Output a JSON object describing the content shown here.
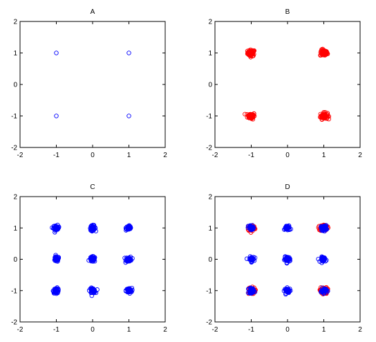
{
  "colors": {
    "blue": "#0000ff",
    "red": "#ff0000",
    "axis": "#000000"
  },
  "chart_data": [
    {
      "type": "scatter",
      "title": "A",
      "xlim": [
        -2,
        2
      ],
      "ylim": [
        -2,
        2
      ],
      "xticks": [
        -2,
        -1,
        0,
        1,
        2
      ],
      "yticks": [
        -2,
        -1,
        0,
        1,
        2
      ],
      "grid": false,
      "series": [
        {
          "color": "blue",
          "marker": "open-circle",
          "centers": [
            [
              -1,
              1
            ],
            [
              1,
              1
            ],
            [
              -1,
              -1
            ],
            [
              1,
              -1
            ]
          ],
          "spread": 0,
          "points_per_center": 1
        }
      ]
    },
    {
      "type": "scatter",
      "title": "B",
      "xlim": [
        -2,
        2
      ],
      "ylim": [
        -2,
        2
      ],
      "xticks": [
        -2,
        -1,
        0,
        1,
        2
      ],
      "yticks": [
        -2,
        -1,
        0,
        1,
        2
      ],
      "grid": false,
      "series": [
        {
          "color": "red",
          "marker": "open-circle",
          "centers": [
            [
              -1,
              1
            ],
            [
              1,
              1
            ],
            [
              -1,
              -1
            ],
            [
              1,
              -1
            ]
          ],
          "spread": 0.05,
          "points_per_center": 60
        }
      ]
    },
    {
      "type": "scatter",
      "title": "C",
      "xlim": [
        -2,
        2
      ],
      "ylim": [
        -2,
        2
      ],
      "xticks": [
        -2,
        -1,
        0,
        1,
        2
      ],
      "yticks": [
        -2,
        -1,
        0,
        1,
        2
      ],
      "grid": false,
      "series": [
        {
          "color": "blue",
          "marker": "open-circle",
          "centers": [
            [
              -1,
              1
            ],
            [
              0,
              1
            ],
            [
              1,
              1
            ],
            [
              -1,
              0
            ],
            [
              0,
              0
            ],
            [
              1,
              0
            ],
            [
              -1,
              -1
            ],
            [
              0,
              -1
            ],
            [
              1,
              -1
            ]
          ],
          "spread": 0.04,
          "points_per_center": 40
        }
      ]
    },
    {
      "type": "scatter",
      "title": "D",
      "xlim": [
        -2,
        2
      ],
      "ylim": [
        -2,
        2
      ],
      "xticks": [
        -2,
        -1,
        0,
        1,
        2
      ],
      "yticks": [
        -2,
        -1,
        0,
        1,
        2
      ],
      "grid": false,
      "series": [
        {
          "color": "red",
          "marker": "open-circle",
          "centers": [
            [
              -1,
              1
            ],
            [
              1,
              1
            ],
            [
              -1,
              -1
            ],
            [
              1,
              -1
            ]
          ],
          "spread": 0.05,
          "points_per_center": 60
        },
        {
          "color": "blue",
          "marker": "open-circle",
          "centers": [
            [
              -1,
              1
            ],
            [
              0,
              1
            ],
            [
              1,
              1
            ],
            [
              -1,
              0
            ],
            [
              0,
              0
            ],
            [
              1,
              0
            ],
            [
              -1,
              -1
            ],
            [
              0,
              -1
            ],
            [
              1,
              -1
            ]
          ],
          "spread": 0.04,
          "points_per_center": 40
        }
      ]
    }
  ]
}
